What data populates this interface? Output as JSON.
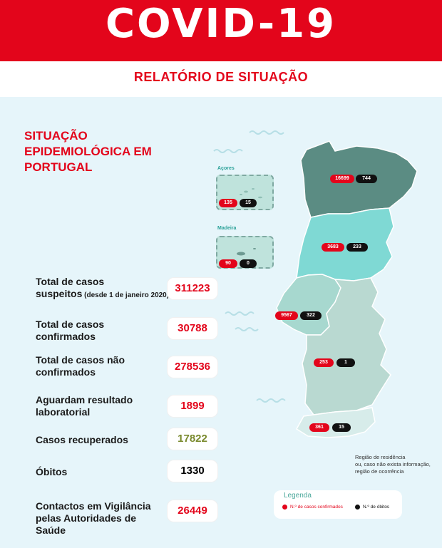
{
  "header": {
    "title": "COVID-19"
  },
  "subheader": {
    "title": "RELATÓRIO DE SITUAÇÃO"
  },
  "section": {
    "title_lines": [
      "SITUAÇÃO",
      "EPIDEMIOLÓGICA EM",
      "PORTUGAL"
    ]
  },
  "stats": [
    {
      "label_lines": [
        "Total de casos",
        "suspeitos"
      ],
      "label_note": " (desde 1 de janeiro 2020)",
      "value": "311223",
      "color": "red"
    },
    {
      "label_lines": [
        "Total de casos",
        "confirmados"
      ],
      "value": "30788",
      "color": "red"
    },
    {
      "label_lines": [
        "Total de casos não",
        "confirmados"
      ],
      "value": "278536",
      "color": "red"
    },
    {
      "label_lines": [
        "Aguardam resultado",
        "laboratorial"
      ],
      "value": "1899",
      "color": "red"
    },
    {
      "label_lines": [
        "Casos recuperados"
      ],
      "value": "17822",
      "color": "green"
    },
    {
      "label_lines": [
        "Óbitos"
      ],
      "value": "1330",
      "color": "black"
    },
    {
      "label_lines": [
        "Contactos em Vigilância",
        "pelas Autoridades de",
        "Saúde"
      ],
      "value": "26449",
      "color": "red"
    }
  ],
  "islands": {
    "azores": {
      "label": "Açores",
      "cases": "135",
      "deaths": "15"
    },
    "madeira": {
      "label": "Madeira",
      "cases": "90",
      "deaths": "0"
    }
  },
  "regions": [
    {
      "name": "Norte",
      "cases": "16699",
      "deaths": "744"
    },
    {
      "name": "Centro",
      "cases": "3683",
      "deaths": "233"
    },
    {
      "name": "Lisboa e Vale do Tejo",
      "cases": "9567",
      "deaths": "322"
    },
    {
      "name": "Alentejo",
      "cases": "253",
      "deaths": "1"
    },
    {
      "name": "Algarve",
      "cases": "361",
      "deaths": "15"
    }
  ],
  "note": {
    "lines": [
      "Região de residência",
      "ou, caso não exista informação,",
      "região de ocorrência"
    ]
  },
  "legend": {
    "title": "Legenda",
    "cases_label": "N.º de casos confirmados",
    "deaths_label": "N.º de óbitos"
  },
  "colors": {
    "brand_red": "#e3051b",
    "panel_bg": "#e6f5fa",
    "norte": "#5b8c83",
    "centro": "#7fd9d4",
    "lisboa": "#a7d8cf",
    "alentejo": "#b9d9d1",
    "algarve": "#d7ecea",
    "recovered_green": "#7a8a2e"
  }
}
